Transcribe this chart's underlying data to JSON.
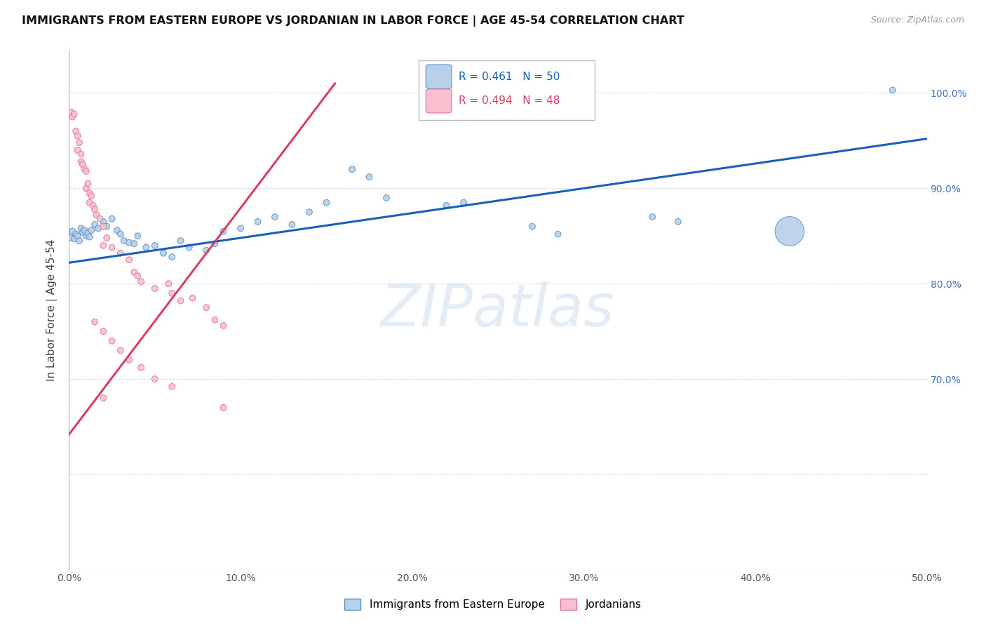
{
  "title": "IMMIGRANTS FROM EASTERN EUROPE VS JORDANIAN IN LABOR FORCE | AGE 45-54 CORRELATION CHART",
  "source": "Source: ZipAtlas.com",
  "ylabel": "In Labor Force | Age 45-54",
  "x_range": [
    0.0,
    0.5
  ],
  "y_range": [
    0.5,
    1.045
  ],
  "legend_blue_r": "R = 0.461",
  "legend_blue_n": "N = 50",
  "legend_pink_r": "R = 0.494",
  "legend_pink_n": "N = 48",
  "legend_label_blue": "Immigrants from Eastern Europe",
  "legend_label_pink": "Jordanians",
  "watermark": "ZIPatlas",
  "blue_scatter": [
    [
      0.001,
      0.848
    ],
    [
      0.002,
      0.855
    ],
    [
      0.003,
      0.847
    ],
    [
      0.004,
      0.852
    ],
    [
      0.005,
      0.85
    ],
    [
      0.006,
      0.845
    ],
    [
      0.007,
      0.858
    ],
    [
      0.008,
      0.854
    ],
    [
      0.009,
      0.856
    ],
    [
      0.01,
      0.85
    ],
    [
      0.011,
      0.853
    ],
    [
      0.012,
      0.849
    ],
    [
      0.013,
      0.856
    ],
    [
      0.015,
      0.862
    ],
    [
      0.017,
      0.858
    ],
    [
      0.02,
      0.865
    ],
    [
      0.022,
      0.86
    ],
    [
      0.025,
      0.868
    ],
    [
      0.028,
      0.856
    ],
    [
      0.03,
      0.852
    ],
    [
      0.032,
      0.845
    ],
    [
      0.035,
      0.843
    ],
    [
      0.038,
      0.842
    ],
    [
      0.04,
      0.85
    ],
    [
      0.045,
      0.838
    ],
    [
      0.05,
      0.84
    ],
    [
      0.055,
      0.832
    ],
    [
      0.06,
      0.828
    ],
    [
      0.065,
      0.845
    ],
    [
      0.07,
      0.838
    ],
    [
      0.08,
      0.835
    ],
    [
      0.085,
      0.842
    ],
    [
      0.09,
      0.855
    ],
    [
      0.1,
      0.858
    ],
    [
      0.11,
      0.865
    ],
    [
      0.12,
      0.87
    ],
    [
      0.13,
      0.862
    ],
    [
      0.14,
      0.875
    ],
    [
      0.15,
      0.885
    ],
    [
      0.165,
      0.92
    ],
    [
      0.175,
      0.912
    ],
    [
      0.185,
      0.89
    ],
    [
      0.22,
      0.882
    ],
    [
      0.23,
      0.885
    ],
    [
      0.27,
      0.86
    ],
    [
      0.285,
      0.852
    ],
    [
      0.34,
      0.87
    ],
    [
      0.355,
      0.865
    ],
    [
      0.42,
      0.855
    ],
    [
      0.48,
      1.003
    ]
  ],
  "blue_sizes": [
    40,
    40,
    40,
    40,
    40,
    40,
    40,
    40,
    40,
    40,
    40,
    40,
    40,
    40,
    40,
    40,
    40,
    40,
    40,
    40,
    40,
    40,
    40,
    40,
    40,
    40,
    40,
    40,
    40,
    40,
    40,
    40,
    40,
    40,
    40,
    40,
    40,
    40,
    40,
    40,
    40,
    40,
    40,
    40,
    40,
    40,
    40,
    40,
    900,
    40
  ],
  "pink_scatter": [
    [
      0.001,
      0.98
    ],
    [
      0.002,
      0.975
    ],
    [
      0.003,
      0.978
    ],
    [
      0.004,
      0.96
    ],
    [
      0.005,
      0.955
    ],
    [
      0.005,
      0.94
    ],
    [
      0.006,
      0.948
    ],
    [
      0.007,
      0.936
    ],
    [
      0.007,
      0.928
    ],
    [
      0.008,
      0.925
    ],
    [
      0.009,
      0.92
    ],
    [
      0.01,
      0.918
    ],
    [
      0.01,
      0.9
    ],
    [
      0.011,
      0.905
    ],
    [
      0.012,
      0.895
    ],
    [
      0.012,
      0.885
    ],
    [
      0.013,
      0.892
    ],
    [
      0.014,
      0.882
    ],
    [
      0.015,
      0.878
    ],
    [
      0.016,
      0.872
    ],
    [
      0.018,
      0.868
    ],
    [
      0.02,
      0.86
    ],
    [
      0.02,
      0.84
    ],
    [
      0.022,
      0.848
    ],
    [
      0.025,
      0.838
    ],
    [
      0.03,
      0.832
    ],
    [
      0.035,
      0.825
    ],
    [
      0.038,
      0.812
    ],
    [
      0.04,
      0.808
    ],
    [
      0.042,
      0.802
    ],
    [
      0.05,
      0.795
    ],
    [
      0.058,
      0.8
    ],
    [
      0.06,
      0.79
    ],
    [
      0.065,
      0.782
    ],
    [
      0.072,
      0.785
    ],
    [
      0.08,
      0.775
    ],
    [
      0.085,
      0.762
    ],
    [
      0.09,
      0.756
    ],
    [
      0.015,
      0.76
    ],
    [
      0.02,
      0.75
    ],
    [
      0.025,
      0.74
    ],
    [
      0.03,
      0.73
    ],
    [
      0.035,
      0.72
    ],
    [
      0.042,
      0.712
    ],
    [
      0.05,
      0.7
    ],
    [
      0.06,
      0.692
    ],
    [
      0.02,
      0.68
    ],
    [
      0.09,
      0.67
    ]
  ],
  "pink_sizes": [
    40,
    40,
    40,
    40,
    40,
    40,
    40,
    40,
    40,
    40,
    40,
    40,
    40,
    40,
    40,
    40,
    40,
    40,
    40,
    40,
    40,
    40,
    40,
    40,
    40,
    40,
    40,
    40,
    40,
    40,
    40,
    40,
    40,
    40,
    40,
    40,
    40,
    40,
    40,
    40,
    40,
    40,
    40,
    40,
    40,
    40,
    40,
    40
  ],
  "blue_line_x": [
    0.0,
    0.5
  ],
  "blue_line_y": [
    0.822,
    0.952
  ],
  "pink_line_x": [
    -0.005,
    0.155
  ],
  "pink_line_y": [
    0.63,
    1.01
  ],
  "blue_color": "#b8d0e8",
  "blue_edge_color": "#5590cc",
  "pink_color": "#f8c0cc",
  "pink_edge_color": "#e070a0",
  "blue_trend_color": "#1a5fba",
  "pink_trend_color": "#d84060",
  "grid_color": "#e0e0e0",
  "background_color": "#ffffff",
  "x_ticks": [
    0.0,
    0.1,
    0.2,
    0.3,
    0.4,
    0.5
  ],
  "x_tick_labels": [
    "0.0%",
    "10.0%",
    "20.0%",
    "30.0%",
    "40.0%",
    "50.0%"
  ],
  "y_ticks": [
    0.5,
    0.6,
    0.7,
    0.8,
    0.9,
    1.0
  ],
  "y_tick_labels_right": [
    "",
    "",
    "70.0%",
    "80.0%",
    "90.0%",
    "100.0%"
  ]
}
